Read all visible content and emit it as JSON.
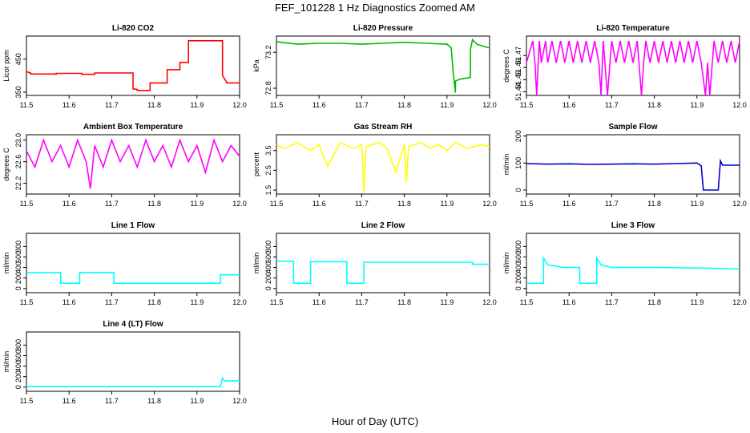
{
  "figure": {
    "title": "FEF_101228  1 Hz Diagnostics Zoomed AM",
    "xlabel": "Hour of Day (UTC)"
  },
  "chart_data": [
    {
      "type": "line",
      "title": "Li-820 CO2",
      "ylabel": "Licor ppm",
      "color": "#ff0000",
      "xlim": [
        11.5,
        12.0
      ],
      "ylim": [
        340,
        520
      ],
      "xticks": [
        "11.5",
        "11.6",
        "11.7",
        "11.8",
        "11.9",
        "12.0"
      ],
      "yticks": [
        {
          "value": 350,
          "label": "350"
        },
        {
          "value": 450,
          "label": "450"
        }
      ],
      "series": [
        {
          "x": [
            11.5,
            11.51,
            11.51,
            11.57,
            11.57,
            11.63,
            11.63,
            11.66,
            11.66,
            11.75,
            11.75,
            11.76,
            11.76,
            11.79,
            11.79,
            11.83,
            11.83,
            11.86,
            11.86,
            11.88,
            11.88,
            11.96,
            11.96,
            11.97,
            11.97,
            12.0
          ],
          "y": [
            412,
            408,
            405,
            405,
            407,
            407,
            404,
            404,
            408,
            408,
            360,
            358,
            355,
            355,
            378,
            378,
            418,
            418,
            440,
            440,
            506,
            506,
            400,
            380,
            378,
            378
          ]
        }
      ]
    },
    {
      "type": "line",
      "title": "Li-820 Pressure",
      "ylabel": "kPa",
      "color": "#00bb00",
      "xlim": [
        11.5,
        12.0
      ],
      "ylim": [
        72.72,
        73.38
      ],
      "xticks": [
        "11.5",
        "11.6",
        "11.7",
        "11.8",
        "11.9",
        "12.0"
      ],
      "yticks": [
        {
          "value": 72.8,
          "label": "72.8"
        },
        {
          "value": 73.2,
          "label": "73.2"
        }
      ],
      "series": [
        {
          "x": [
            11.5,
            11.51,
            11.55,
            11.6,
            11.65,
            11.7,
            11.75,
            11.8,
            11.85,
            11.9,
            11.91,
            11.915,
            11.92,
            11.92,
            11.93,
            11.955,
            11.955,
            11.96,
            11.97,
            11.99,
            12.0
          ],
          "y": [
            73.32,
            73.31,
            73.29,
            73.3,
            73.3,
            73.29,
            73.3,
            73.31,
            73.3,
            73.29,
            73.25,
            72.96,
            72.75,
            72.88,
            72.9,
            72.92,
            73.23,
            73.34,
            73.29,
            73.26,
            73.25
          ]
        }
      ]
    },
    {
      "type": "line",
      "title": "Li-820 Temperature",
      "ylabel": "degrees C",
      "color": "#ff00ff",
      "xlim": [
        11.5,
        12.0
      ],
      "ylim": [
        51.437,
        51.486
      ],
      "xticks": [
        "11.5",
        "11.6",
        "11.7",
        "11.8",
        "11.9",
        "12.0"
      ],
      "yticks": [
        {
          "value": 51.44,
          "label": "51.44"
        },
        {
          "value": 51.45,
          "label": "51.45"
        },
        {
          "value": 51.46,
          "label": "51.46"
        },
        {
          "value": 51.47,
          "label": "51.47"
        }
      ],
      "series": [
        {
          "x": [
            11.5,
            11.515,
            11.52,
            11.524,
            11.53,
            11.535,
            11.545,
            11.55,
            11.56,
            11.57,
            11.58,
            11.59,
            11.6,
            11.61,
            11.62,
            11.63,
            11.64,
            11.65,
            11.66,
            11.67,
            11.675,
            11.68,
            11.69,
            11.7,
            11.71,
            11.72,
            11.73,
            11.74,
            11.75,
            11.76,
            11.77,
            11.775,
            11.78,
            11.79,
            11.8,
            11.81,
            11.82,
            11.83,
            11.84,
            11.85,
            11.86,
            11.87,
            11.88,
            11.89,
            11.9,
            11.91,
            11.92,
            11.925,
            11.93,
            11.94,
            11.95,
            11.96,
            11.97,
            11.98,
            11.99,
            12.0
          ],
          "y": [
            51.464,
            51.482,
            51.464,
            51.437,
            51.482,
            51.464,
            51.482,
            51.464,
            51.482,
            51.464,
            51.482,
            51.464,
            51.482,
            51.464,
            51.482,
            51.464,
            51.482,
            51.464,
            51.482,
            51.464,
            51.437,
            51.482,
            51.437,
            51.482,
            51.464,
            51.482,
            51.464,
            51.482,
            51.464,
            51.482,
            51.437,
            51.464,
            51.482,
            51.464,
            51.482,
            51.464,
            51.482,
            51.464,
            51.482,
            51.464,
            51.482,
            51.464,
            51.482,
            51.464,
            51.482,
            51.464,
            51.437,
            51.464,
            51.437,
            51.482,
            51.464,
            51.482,
            51.464,
            51.482,
            51.464,
            51.482
          ]
        }
      ]
    },
    {
      "type": "line",
      "title": "Ambient Box Temperature",
      "ylabel": "degrees C",
      "color": "#ff00ff",
      "xlim": [
        11.5,
        12.0
      ],
      "ylim": [
        22.0,
        23.1
      ],
      "xticks": [
        "11.5",
        "11.6",
        "11.7",
        "11.8",
        "11.9",
        "12.0"
      ],
      "yticks": [
        {
          "value": 22.2,
          "label": "22.2"
        },
        {
          "value": 22.6,
          "label": "22.6"
        },
        {
          "value": 23.0,
          "label": "23.0"
        }
      ],
      "series": [
        {
          "x": [
            11.5,
            11.52,
            11.54,
            11.56,
            11.58,
            11.6,
            11.62,
            11.64,
            11.65,
            11.66,
            11.68,
            11.7,
            11.72,
            11.74,
            11.76,
            11.78,
            11.8,
            11.82,
            11.84,
            11.86,
            11.88,
            11.9,
            11.92,
            11.94,
            11.96,
            11.98,
            12.0
          ],
          "y": [
            22.8,
            22.5,
            23.0,
            22.6,
            22.9,
            22.5,
            23.0,
            22.6,
            22.1,
            22.9,
            22.5,
            23.0,
            22.6,
            22.9,
            22.5,
            23.0,
            22.6,
            22.9,
            22.5,
            23.0,
            22.6,
            22.9,
            22.4,
            23.0,
            22.6,
            22.9,
            22.7
          ]
        }
      ]
    },
    {
      "type": "line",
      "title": "Gas Stream RH",
      "ylabel": "percent",
      "color": "#ffff00",
      "xlim": [
        11.5,
        12.0
      ],
      "ylim": [
        1.3,
        4.3
      ],
      "xticks": [
        "11.5",
        "11.6",
        "11.7",
        "11.8",
        "11.9",
        "12.0"
      ],
      "yticks": [
        {
          "value": 1.5,
          "label": "1.5"
        },
        {
          "value": 2.5,
          "label": "2.5"
        },
        {
          "value": 3.5,
          "label": "3.5"
        }
      ],
      "series": [
        {
          "x": [
            11.5,
            11.52,
            11.55,
            11.58,
            11.6,
            11.62,
            11.65,
            11.68,
            11.7,
            11.705,
            11.71,
            11.74,
            11.76,
            11.78,
            11.8,
            11.805,
            11.81,
            11.84,
            11.86,
            11.88,
            11.9,
            11.92,
            11.95,
            11.98,
            12.0
          ],
          "y": [
            3.8,
            3.6,
            3.9,
            3.5,
            3.8,
            2.7,
            3.9,
            3.6,
            3.8,
            1.4,
            3.7,
            3.9,
            3.6,
            2.4,
            3.8,
            1.9,
            3.7,
            3.9,
            3.6,
            3.8,
            3.5,
            3.9,
            3.6,
            3.8,
            3.7
          ]
        }
      ]
    },
    {
      "type": "line",
      "title": "Sample Flow",
      "ylabel": "ml/min",
      "color": "#0000cc",
      "xlim": [
        11.5,
        12.0
      ],
      "ylim": [
        -15,
        205
      ],
      "xticks": [
        "11.5",
        "11.6",
        "11.7",
        "11.8",
        "11.9",
        "12.0"
      ],
      "yticks": [
        {
          "value": 0,
          "label": "0"
        },
        {
          "value": 100,
          "label": "100"
        },
        {
          "value": 200,
          "label": "200"
        }
      ],
      "series": [
        {
          "x": [
            11.5,
            11.55,
            11.6,
            11.65,
            11.7,
            11.75,
            11.8,
            11.85,
            11.9,
            11.91,
            11.915,
            11.95,
            11.955,
            11.96,
            12.0
          ],
          "y": [
            98,
            96,
            97,
            95,
            96,
            97,
            96,
            98,
            100,
            90,
            0,
            0,
            108,
            92,
            92
          ]
        }
      ]
    },
    {
      "type": "line",
      "title": "Line 1 Flow",
      "ylabel": "ml/min",
      "color": "#00ffff",
      "xlim": [
        11.5,
        12.0
      ],
      "ylim": [
        -80,
        1050
      ],
      "xticks": [
        "11.5",
        "11.6",
        "11.7",
        "11.8",
        "11.9",
        "12.0"
      ],
      "yticks": [
        {
          "value": 0,
          "label": "0"
        },
        {
          "value": 200,
          "label": "200"
        },
        {
          "value": 400,
          "label": "400"
        },
        {
          "value": 600,
          "label": "600"
        },
        {
          "value": 800,
          "label": "800"
        }
      ],
      "series": [
        {
          "x": [
            11.5,
            11.58,
            11.58,
            11.625,
            11.625,
            11.705,
            11.705,
            11.955,
            11.955,
            12.0
          ],
          "y": [
            300,
            300,
            100,
            100,
            305,
            305,
            100,
            100,
            260,
            260
          ]
        }
      ]
    },
    {
      "type": "line",
      "title": "Line 2 Flow",
      "ylabel": "ml/min",
      "color": "#00ffff",
      "xlim": [
        11.5,
        12.0
      ],
      "ylim": [
        -80,
        1050
      ],
      "xticks": [
        "11.5",
        "11.6",
        "11.7",
        "11.8",
        "11.9",
        "12.0"
      ],
      "yticks": [
        {
          "value": 0,
          "label": "0"
        },
        {
          "value": 200,
          "label": "200"
        },
        {
          "value": 400,
          "label": "400"
        },
        {
          "value": 600,
          "label": "600"
        },
        {
          "value": 800,
          "label": "800"
        }
      ],
      "series": [
        {
          "x": [
            11.5,
            11.54,
            11.54,
            11.58,
            11.58,
            11.665,
            11.665,
            11.705,
            11.705,
            11.96,
            11.96,
            12.0
          ],
          "y": [
            520,
            520,
            100,
            100,
            510,
            510,
            100,
            100,
            500,
            500,
            460,
            460
          ]
        }
      ]
    },
    {
      "type": "line",
      "title": "Line 3 Flow",
      "ylabel": "ml/min",
      "color": "#00ffff",
      "xlim": [
        11.5,
        12.0
      ],
      "ylim": [
        -80,
        1050
      ],
      "xticks": [
        "11.5",
        "11.6",
        "11.7",
        "11.8",
        "11.9",
        "12.0"
      ],
      "yticks": [
        {
          "value": 0,
          "label": "0"
        },
        {
          "value": 200,
          "label": "200"
        },
        {
          "value": 400,
          "label": "400"
        },
        {
          "value": 600,
          "label": "600"
        },
        {
          "value": 800,
          "label": "800"
        }
      ],
      "series": [
        {
          "x": [
            11.5,
            11.54,
            11.54,
            11.55,
            11.58,
            11.585,
            11.625,
            11.625,
            11.665,
            11.665,
            11.675,
            11.7,
            11.8,
            11.9,
            12.0
          ],
          "y": [
            100,
            100,
            580,
            450,
            410,
            400,
            400,
            100,
            100,
            580,
            450,
            400,
            400,
            390,
            370
          ]
        }
      ]
    },
    {
      "type": "line",
      "title": "Line 4 (LT) Flow",
      "ylabel": "ml/min",
      "color": "#00ffff",
      "xlim": [
        11.5,
        12.0
      ],
      "ylim": [
        -80,
        1050
      ],
      "xticks": [
        "11.5",
        "11.6",
        "11.7",
        "11.8",
        "11.9",
        "12.0"
      ],
      "yticks": [
        {
          "value": 0,
          "label": "0"
        },
        {
          "value": 200,
          "label": "200"
        },
        {
          "value": 400,
          "label": "400"
        },
        {
          "value": 600,
          "label": "600"
        },
        {
          "value": 800,
          "label": "800"
        }
      ],
      "series": [
        {
          "x": [
            11.5,
            11.955,
            11.96,
            11.965,
            12.0
          ],
          "y": [
            10,
            10,
            170,
            120,
            120
          ]
        }
      ]
    }
  ]
}
